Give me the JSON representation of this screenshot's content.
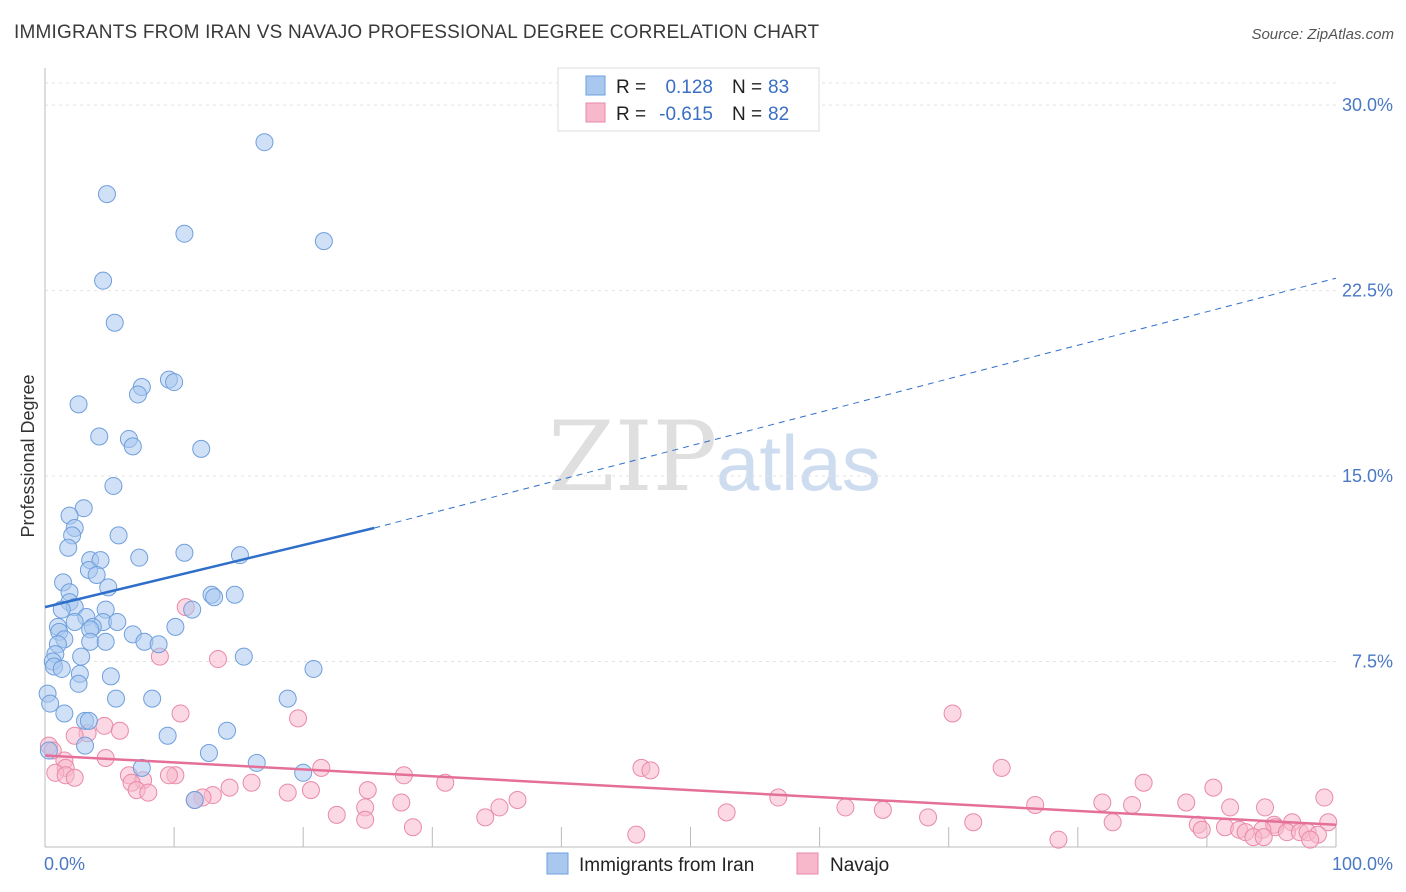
{
  "chart_data": {
    "type": "scatter",
    "title": "IMMIGRANTS FROM IRAN VS NAVAJO PROFESSIONAL DEGREE CORRELATION CHART",
    "source": "Source: ZipAtlas.com",
    "ylabel": "Professional Degree",
    "xlim": [
      0,
      100
    ],
    "ylim": [
      0,
      31.5
    ],
    "x_tick_labels": [
      "0.0%",
      "100.0%"
    ],
    "y_ticks": [
      7.5,
      15.0,
      22.5,
      30.0
    ],
    "y_tick_labels": [
      "7.5%",
      "15.0%",
      "22.5%",
      "30.0%"
    ],
    "grid": "horizontal dashed",
    "watermark": {
      "zip": "ZIP",
      "atlas": "atlas"
    },
    "legend_stats": [
      {
        "r_label": "R =",
        "r_value": "0.128",
        "n_label": "N =",
        "n_value": "83"
      },
      {
        "r_label": "R =",
        "r_value": "-0.615",
        "n_label": "N =",
        "n_value": "82"
      }
    ],
    "colors": {
      "iran_fill": "#a9c8f0",
      "iran_stroke": "#6f9fdc",
      "iran_line": "#2f6fc9",
      "navajo_fill": "#f7b8cc",
      "navajo_stroke": "#e98aa8",
      "navajo_line": "#e4709a"
    },
    "series": [
      {
        "name": "Immigrants from Iran",
        "r": 0.128,
        "n": 83,
        "trend": {
          "x0": 0,
          "y0": 9.7,
          "x1": 25.5,
          "y1": 12.9,
          "dash_to_x": 100,
          "dash_to_y": 23.0
        },
        "points": [
          [
            17,
            28.5
          ],
          [
            4.8,
            26.4
          ],
          [
            10.8,
            24.8
          ],
          [
            21.6,
            24.5
          ],
          [
            4.5,
            22.9
          ],
          [
            5.4,
            21.2
          ],
          [
            9.6,
            18.9
          ],
          [
            10,
            18.8
          ],
          [
            7.5,
            18.6
          ],
          [
            7.2,
            18.3
          ],
          [
            2.6,
            17.9
          ],
          [
            4.2,
            16.6
          ],
          [
            6.5,
            16.5
          ],
          [
            6.8,
            16.2
          ],
          [
            12.1,
            16.1
          ],
          [
            5.3,
            14.6
          ],
          [
            3,
            13.7
          ],
          [
            1.9,
            13.4
          ],
          [
            2.3,
            12.9
          ],
          [
            2.1,
            12.6
          ],
          [
            5.7,
            12.6
          ],
          [
            1.8,
            12.1
          ],
          [
            10.8,
            11.9
          ],
          [
            7.3,
            11.7
          ],
          [
            15.1,
            11.8
          ],
          [
            3.5,
            11.6
          ],
          [
            4.3,
            11.6
          ],
          [
            3.4,
            11.2
          ],
          [
            4,
            11
          ],
          [
            1.4,
            10.7
          ],
          [
            4.9,
            10.5
          ],
          [
            1.9,
            10.3
          ],
          [
            12.9,
            10.2
          ],
          [
            14.7,
            10.2
          ],
          [
            13.1,
            10.1
          ],
          [
            1.9,
            9.9
          ],
          [
            2.3,
            9.7
          ],
          [
            1.3,
            9.6
          ],
          [
            11.4,
            9.6
          ],
          [
            4.7,
            9.6
          ],
          [
            3.2,
            9.3
          ],
          [
            2.3,
            9.1
          ],
          [
            4.5,
            9.1
          ],
          [
            5.6,
            9.1
          ],
          [
            3.7,
            8.9
          ],
          [
            10.1,
            8.9
          ],
          [
            1,
            8.9
          ],
          [
            1.1,
            8.7
          ],
          [
            3.5,
            8.8
          ],
          [
            6.8,
            8.6
          ],
          [
            1.5,
            8.4
          ],
          [
            3.5,
            8.3
          ],
          [
            4.7,
            8.3
          ],
          [
            7.7,
            8.3
          ],
          [
            1,
            8.2
          ],
          [
            8.8,
            8.2
          ],
          [
            0.8,
            7.8
          ],
          [
            2.8,
            7.7
          ],
          [
            15.4,
            7.7
          ],
          [
            0.6,
            7.5
          ],
          [
            0.7,
            7.3
          ],
          [
            1.3,
            7.2
          ],
          [
            2.7,
            7
          ],
          [
            5.1,
            6.9
          ],
          [
            20.8,
            7.2
          ],
          [
            2.6,
            6.6
          ],
          [
            0.2,
            6.2
          ],
          [
            5.5,
            6
          ],
          [
            8.3,
            6
          ],
          [
            18.8,
            6
          ],
          [
            0.4,
            5.8
          ],
          [
            1.5,
            5.4
          ],
          [
            3.1,
            5.1
          ],
          [
            3.4,
            5.1
          ],
          [
            14.1,
            4.7
          ],
          [
            9.5,
            4.5
          ],
          [
            3.1,
            4.1
          ],
          [
            12.7,
            3.8
          ],
          [
            0.3,
            3.9
          ],
          [
            16.4,
            3.4
          ],
          [
            7.5,
            3.2
          ],
          [
            20,
            3
          ],
          [
            11.6,
            1.9
          ]
        ]
      },
      {
        "name": "Navajo",
        "r": -0.615,
        "n": 82,
        "trend": {
          "x0": 0,
          "y0": 3.7,
          "x1": 100,
          "y1": 0.9
        },
        "points": [
          [
            0.3,
            4.1
          ],
          [
            0.6,
            3.9
          ],
          [
            10.9,
            9.7
          ],
          [
            8.9,
            7.7
          ],
          [
            13.4,
            7.6
          ],
          [
            70.3,
            5.4
          ],
          [
            10.5,
            5.4
          ],
          [
            19.6,
            5.2
          ],
          [
            4.6,
            4.9
          ],
          [
            5.8,
            4.7
          ],
          [
            3.3,
            4.6
          ],
          [
            2.3,
            4.5
          ],
          [
            4.7,
            3.6
          ],
          [
            1.5,
            3.5
          ],
          [
            1.6,
            3.2
          ],
          [
            21.4,
            3.2
          ],
          [
            46.2,
            3.2
          ],
          [
            46.9,
            3.1
          ],
          [
            74.1,
            3.2
          ],
          [
            0.8,
            3
          ],
          [
            1.6,
            2.9
          ],
          [
            6.5,
            2.9
          ],
          [
            10.1,
            2.9
          ],
          [
            2.3,
            2.8
          ],
          [
            9.6,
            2.9
          ],
          [
            27.8,
            2.9
          ],
          [
            7.6,
            2.7
          ],
          [
            6.7,
            2.6
          ],
          [
            16,
            2.6
          ],
          [
            31,
            2.6
          ],
          [
            85.1,
            2.6
          ],
          [
            7.1,
            2.3
          ],
          [
            14.3,
            2.4
          ],
          [
            8,
            2.2
          ],
          [
            20.6,
            2.3
          ],
          [
            25,
            2.3
          ],
          [
            90.5,
            2.4
          ],
          [
            13,
            2.1
          ],
          [
            18.8,
            2.2
          ],
          [
            12.2,
            2
          ],
          [
            11.6,
            1.9
          ],
          [
            36.6,
            1.9
          ],
          [
            56.8,
            2
          ],
          [
            99.1,
            2
          ],
          [
            27.6,
            1.8
          ],
          [
            81.9,
            1.8
          ],
          [
            84.2,
            1.7
          ],
          [
            88.4,
            1.8
          ],
          [
            91.8,
            1.6
          ],
          [
            24.8,
            1.6
          ],
          [
            35.2,
            1.6
          ],
          [
            62,
            1.6
          ],
          [
            64.9,
            1.5
          ],
          [
            76.7,
            1.7
          ],
          [
            94.5,
            1.6
          ],
          [
            22.6,
            1.3
          ],
          [
            34.1,
            1.2
          ],
          [
            52.8,
            1.4
          ],
          [
            68.4,
            1.2
          ],
          [
            24.8,
            1.1
          ],
          [
            71.9,
            1
          ],
          [
            82.7,
            1
          ],
          [
            89.3,
            0.9
          ],
          [
            95.2,
            0.9
          ],
          [
            96.6,
            1
          ],
          [
            99.4,
            1
          ],
          [
            95.3,
            0.8
          ],
          [
            28.5,
            0.8
          ],
          [
            89.6,
            0.7
          ],
          [
            91.4,
            0.8
          ],
          [
            92.5,
            0.7
          ],
          [
            93,
            0.6
          ],
          [
            94.3,
            0.7
          ],
          [
            96.2,
            0.6
          ],
          [
            97.2,
            0.6
          ],
          [
            97.8,
            0.6
          ],
          [
            98.6,
            0.5
          ],
          [
            45.8,
            0.5
          ],
          [
            93.6,
            0.4
          ],
          [
            94.4,
            0.4
          ],
          [
            98,
            0.3
          ],
          [
            78.5,
            0.3
          ]
        ]
      }
    ]
  }
}
